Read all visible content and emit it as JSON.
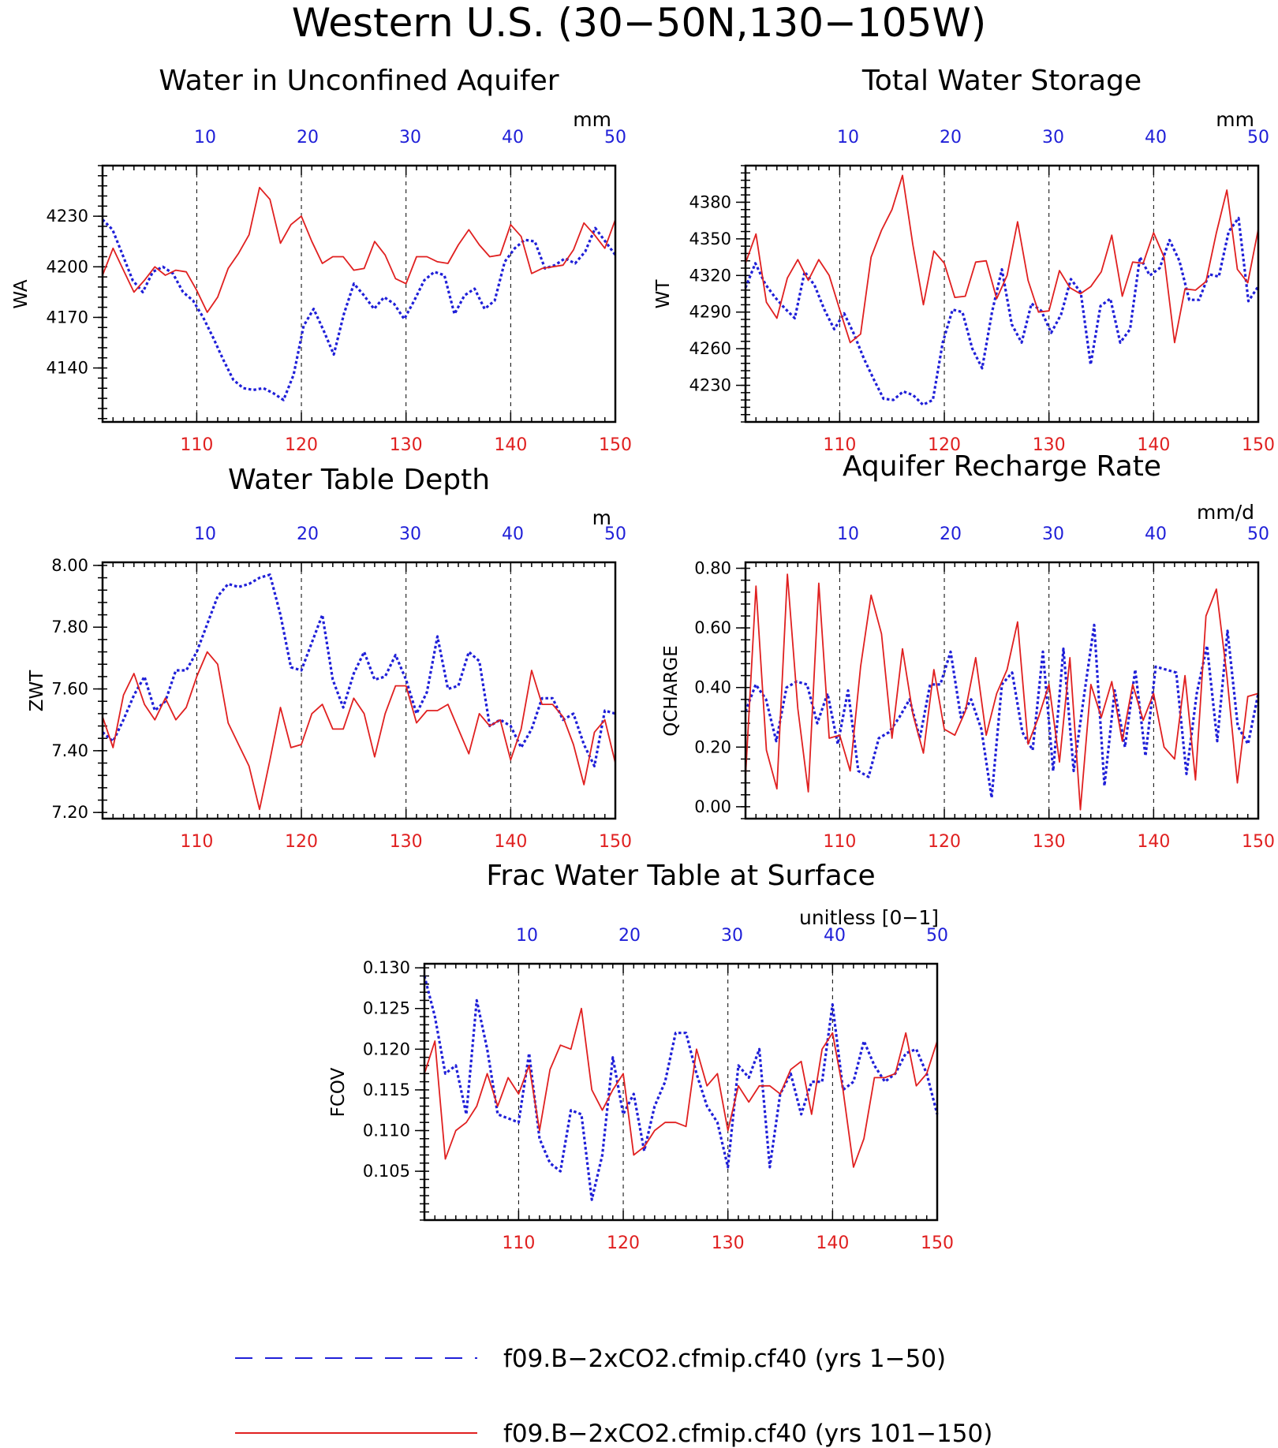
{
  "figure_title": "Western U.S. (30−50N,130−105W)",
  "colors": {
    "series_a": "#1f1fd8",
    "series_b": "#e02020",
    "axis": "#000000"
  },
  "legend": [
    {
      "label": "f09.B−2xCO2.cfmip.cf40 (yrs 1−50)",
      "style": "dashed",
      "color": "#1f1fd8"
    },
    {
      "label": "f09.B−2xCO2.cfmip.cf40 (yrs 101−150)",
      "style": "solid",
      "color": "#e02020"
    }
  ],
  "chart_data": [
    {
      "type": "line",
      "title": "Water in Unconfined Aquifer",
      "units": "mm",
      "ylabel": "WA",
      "x_bottom": {
        "ticks": [
          110,
          120,
          130,
          140,
          150
        ],
        "range": [
          101,
          150
        ]
      },
      "x_top": {
        "ticks": [
          10,
          20,
          30,
          40,
          50
        ],
        "range": [
          1,
          50
        ]
      },
      "ylim": [
        4108,
        4260
      ],
      "yticks": [
        4140,
        4170,
        4200,
        4230
      ],
      "ytick_labels": [
        "4140",
        "4170",
        "4200",
        "4230"
      ],
      "series": [
        {
          "color": "#1f1fd8",
          "dashed": true,
          "values": [
            4228,
            4222,
            4207,
            4192,
            4185,
            4197,
            4200,
            4196,
            4185,
            4180,
            4170,
            4158,
            4145,
            4133,
            4128,
            4127,
            4128,
            4125,
            4121,
            4136,
            4165,
            4175,
            4162,
            4148,
            4172,
            4190,
            4183,
            4175,
            4182,
            4178,
            4169,
            4180,
            4192,
            4197,
            4195,
            4172,
            4183,
            4187,
            4175,
            4180,
            4203,
            4211,
            4216,
            4215,
            4199,
            4201,
            4205,
            4202,
            4209,
            4223,
            4215,
            4207
          ]
        },
        {
          "color": "#e02020",
          "dashed": false,
          "values": [
            4195,
            4211,
            4198,
            4185,
            4192,
            4200,
            4195,
            4198,
            4197,
            4186,
            4173,
            4182,
            4199,
            4208,
            4219,
            4247,
            4240,
            4214,
            4225,
            4230,
            4215,
            4202,
            4206,
            4206,
            4198,
            4199,
            4215,
            4207,
            4193,
            4190,
            4206,
            4206,
            4203,
            4202,
            4213,
            4222,
            4213,
            4206,
            4207,
            4225,
            4218,
            4196,
            4199,
            4200,
            4201,
            4210,
            4226,
            4219,
            4211,
            4228
          ]
        }
      ]
    },
    {
      "type": "line",
      "title": "Total Water Storage",
      "units": "mm",
      "ylabel": "WT",
      "x_bottom": {
        "ticks": [
          110,
          120,
          130,
          140,
          150
        ],
        "range": [
          101,
          150
        ]
      },
      "x_top": {
        "ticks": [
          10,
          20,
          30,
          40,
          50
        ],
        "range": [
          1,
          50
        ]
      },
      "ylim": [
        4200,
        4410
      ],
      "yticks": [
        4230,
        4260,
        4290,
        4320,
        4350,
        4380
      ],
      "ytick_labels": [
        "4230",
        "4260",
        "4290",
        "4320",
        "4350",
        "4380"
      ],
      "series": [
        {
          "color": "#1f1fd8",
          "dashed": true,
          "values": [
            4310,
            4330,
            4313,
            4302,
            4293,
            4285,
            4323,
            4312,
            4292,
            4276,
            4289,
            4272,
            4252,
            4235,
            4219,
            4218,
            4225,
            4222,
            4214,
            4218,
            4265,
            4292,
            4290,
            4260,
            4244,
            4290,
            4325,
            4280,
            4265,
            4297,
            4291,
            4273,
            4288,
            4317,
            4306,
            4247,
            4295,
            4301,
            4265,
            4276,
            4335,
            4320,
            4326,
            4349,
            4332,
            4300,
            4300,
            4321,
            4319,
            4356,
            4367,
            4299,
            4311
          ]
        },
        {
          "color": "#e02020",
          "dashed": false,
          "values": [
            4330,
            4354,
            4298,
            4285,
            4318,
            4333,
            4316,
            4333,
            4320,
            4292,
            4265,
            4272,
            4335,
            4357,
            4374,
            4402,
            4345,
            4296,
            4340,
            4330,
            4302,
            4303,
            4331,
            4332,
            4301,
            4320,
            4364,
            4316,
            4290,
            4291,
            4324,
            4310,
            4305,
            4311,
            4323,
            4353,
            4303,
            4331,
            4330,
            4355,
            4335,
            4265,
            4309,
            4308,
            4315,
            4355,
            4390,
            4325,
            4314,
            4358
          ]
        }
      ]
    },
    {
      "type": "line",
      "title": "Water Table Depth",
      "units": "m",
      "ylabel": "ZWT",
      "x_bottom": {
        "ticks": [
          110,
          120,
          130,
          140,
          150
        ],
        "range": [
          101,
          150
        ]
      },
      "x_top": {
        "ticks": [
          10,
          20,
          30,
          40,
          50
        ],
        "range": [
          1,
          50
        ]
      },
      "ylim": [
        7.18,
        8.01
      ],
      "yticks": [
        7.2,
        7.4,
        7.6,
        7.8,
        8.0
      ],
      "ytick_labels": [
        "7.20",
        "7.40",
        "7.60",
        "7.80",
        "8.00"
      ],
      "series": [
        {
          "color": "#1f1fd8",
          "dashed": true,
          "values": [
            7.46,
            7.43,
            7.5,
            7.58,
            7.64,
            7.53,
            7.56,
            7.66,
            7.66,
            7.72,
            7.81,
            7.9,
            7.94,
            7.93,
            7.94,
            7.96,
            7.97,
            7.84,
            7.67,
            7.66,
            7.75,
            7.84,
            7.63,
            7.54,
            7.65,
            7.72,
            7.63,
            7.64,
            7.71,
            7.63,
            7.52,
            7.59,
            7.77,
            7.6,
            7.61,
            7.72,
            7.69,
            7.48,
            7.5,
            7.48,
            7.41,
            7.47,
            7.57,
            7.57,
            7.5,
            7.52,
            7.42,
            7.35,
            7.53,
            7.52
          ]
        },
        {
          "color": "#e02020",
          "dashed": false,
          "values": [
            7.51,
            7.41,
            7.58,
            7.65,
            7.55,
            7.5,
            7.57,
            7.5,
            7.54,
            7.64,
            7.72,
            7.68,
            7.49,
            7.42,
            7.35,
            7.21,
            7.37,
            7.54,
            7.41,
            7.42,
            7.52,
            7.55,
            7.47,
            7.47,
            7.57,
            7.52,
            7.38,
            7.52,
            7.61,
            7.61,
            7.49,
            7.53,
            7.53,
            7.55,
            7.47,
            7.39,
            7.52,
            7.48,
            7.5,
            7.37,
            7.47,
            7.66,
            7.55,
            7.55,
            7.51,
            7.42,
            7.29,
            7.46,
            7.5,
            7.36
          ]
        }
      ]
    },
    {
      "type": "line",
      "title": "Aquifer Recharge Rate",
      "units": "mm/d",
      "ylabel": "QCHARGE",
      "x_bottom": {
        "ticks": [
          110,
          120,
          130,
          140,
          150
        ],
        "range": [
          101,
          150
        ]
      },
      "x_top": {
        "ticks": [
          10,
          20,
          30,
          40,
          50
        ],
        "range": [
          1,
          50
        ]
      },
      "ylim": [
        -0.04,
        0.82
      ],
      "yticks": [
        0.0,
        0.2,
        0.4,
        0.6,
        0.8
      ],
      "ytick_labels": [
        "0.00",
        "0.20",
        "0.40",
        "0.60",
        "0.80"
      ],
      "series": [
        {
          "color": "#1f1fd8",
          "dashed": true,
          "values": [
            0.32,
            0.41,
            0.36,
            0.22,
            0.4,
            0.42,
            0.41,
            0.28,
            0.38,
            0.21,
            0.39,
            0.12,
            0.1,
            0.23,
            0.25,
            0.3,
            0.36,
            0.23,
            0.41,
            0.41,
            0.52,
            0.3,
            0.36,
            0.26,
            0.03,
            0.41,
            0.45,
            0.25,
            0.19,
            0.52,
            0.12,
            0.53,
            0.12,
            0.37,
            0.61,
            0.07,
            0.39,
            0.2,
            0.46,
            0.17,
            0.47,
            0.46,
            0.45,
            0.11,
            0.38,
            0.54,
            0.22,
            0.59,
            0.27,
            0.21,
            0.38
          ]
        },
        {
          "color": "#e02020",
          "dashed": false,
          "values": [
            0.1,
            0.74,
            0.19,
            0.06,
            0.78,
            0.33,
            0.05,
            0.75,
            0.23,
            0.24,
            0.12,
            0.47,
            0.71,
            0.58,
            0.23,
            0.53,
            0.31,
            0.18,
            0.46,
            0.26,
            0.24,
            0.32,
            0.5,
            0.24,
            0.38,
            0.46,
            0.62,
            0.21,
            0.3,
            0.41,
            0.15,
            0.5,
            -0.01,
            0.41,
            0.3,
            0.42,
            0.22,
            0.41,
            0.29,
            0.38,
            0.2,
            0.16,
            0.44,
            0.09,
            0.64,
            0.73,
            0.44,
            0.08,
            0.37,
            0.38
          ]
        }
      ]
    },
    {
      "type": "line",
      "title": "Frac Water Table at Surface",
      "units": "unitless [0−1]",
      "ylabel": "FCOV",
      "x_bottom": {
        "ticks": [
          110,
          120,
          130,
          140,
          150
        ],
        "range": [
          101,
          150
        ]
      },
      "x_top": {
        "ticks": [
          10,
          20,
          30,
          40,
          50
        ],
        "range": [
          1,
          50
        ]
      },
      "ylim": [
        0.099,
        0.1305
      ],
      "yticks": [
        0.105,
        0.11,
        0.115,
        0.12,
        0.125,
        0.13
      ],
      "ytick_labels": [
        "0.105",
        "0.110",
        "0.115",
        "0.120",
        "0.125",
        "0.130"
      ],
      "series": [
        {
          "color": "#1f1fd8",
          "dashed": true,
          "values": [
            0.129,
            0.124,
            0.117,
            0.118,
            0.112,
            0.126,
            0.12,
            0.112,
            0.1115,
            0.111,
            0.1195,
            0.109,
            0.106,
            0.105,
            0.1125,
            0.112,
            0.1015,
            0.107,
            0.119,
            0.112,
            0.1145,
            0.1075,
            0.113,
            0.116,
            0.122,
            0.122,
            0.117,
            0.113,
            0.111,
            0.1055,
            0.118,
            0.1165,
            0.12,
            0.1055,
            0.1145,
            0.117,
            0.112,
            0.116,
            0.116,
            0.1255,
            0.115,
            0.116,
            0.121,
            0.118,
            0.116,
            0.117,
            0.1195,
            0.12,
            0.117,
            0.112
          ]
        },
        {
          "color": "#e02020",
          "dashed": false,
          "values": [
            0.117,
            0.121,
            0.1065,
            0.11,
            0.111,
            0.113,
            0.117,
            0.113,
            0.1165,
            0.1145,
            0.118,
            0.11,
            0.1175,
            0.1205,
            0.12,
            0.125,
            0.115,
            0.1125,
            0.115,
            0.117,
            0.107,
            0.108,
            0.11,
            0.111,
            0.111,
            0.1105,
            0.12,
            0.1155,
            0.117,
            0.11,
            0.1155,
            0.1135,
            0.1155,
            0.1155,
            0.1145,
            0.1175,
            0.1185,
            0.112,
            0.12,
            0.122,
            0.115,
            0.1055,
            0.109,
            0.1165,
            0.1165,
            0.117,
            0.122,
            0.1155,
            0.117,
            0.121
          ]
        }
      ]
    }
  ]
}
